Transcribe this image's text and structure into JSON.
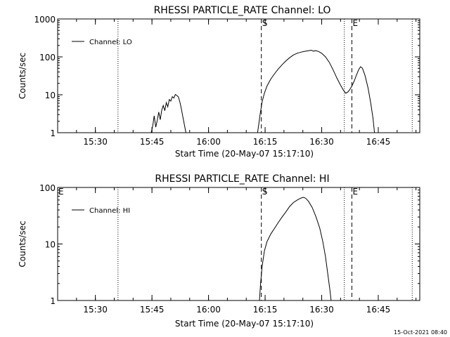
{
  "timestamp": "15-Oct-2021 08:40",
  "chart_data": [
    {
      "type": "line",
      "title": "RHESSI PARTICLE_RATE Channel: LO",
      "xlabel": "Start Time (20-May-07 15:17:10)",
      "ylabel": "Counts/sec",
      "yscale": "log",
      "ylim": [
        1,
        1000
      ],
      "yticks": [
        {
          "v": 1,
          "label": "1"
        },
        {
          "v": 10,
          "label": "10"
        },
        {
          "v": 100,
          "label": "100"
        },
        {
          "v": 1000,
          "label": "1000"
        }
      ],
      "xlim": [
        "15:20",
        "16:56"
      ],
      "xticks": [
        "15:30",
        "15:45",
        "16:00",
        "16:15",
        "16:30",
        "16:45"
      ],
      "legend": {
        "label": "Channel: LO",
        "placement": "top-left"
      },
      "markers": [
        {
          "label": "",
          "time": "15:36",
          "style": "dotted"
        },
        {
          "label": "S",
          "time": "16:14",
          "style": "dashed"
        },
        {
          "label": "",
          "time": "16:36",
          "style": "dotted"
        },
        {
          "label": "E",
          "time": "16:38",
          "style": "dashed"
        },
        {
          "label": "",
          "time": "16:54",
          "style": "dotted"
        }
      ],
      "series": [
        {
          "segments": [
            [
              [
                "15:44.8",
                1
              ],
              [
                "15:45.2",
                1.5
              ],
              [
                "15:45.6",
                2.8
              ],
              [
                "15:46.0",
                1.4
              ],
              [
                "15:46.4",
                2.1
              ],
              [
                "15:46.8",
                3.5
              ],
              [
                "15:47.2",
                2.2
              ],
              [
                "15:47.6",
                4.0
              ],
              [
                "15:48.0",
                5.2
              ],
              [
                "15:48.4",
                3.8
              ],
              [
                "15:48.8",
                6.2
              ],
              [
                "15:49.2",
                4.8
              ],
              [
                "15:49.6",
                7.5
              ],
              [
                "15:50.0",
                6.8
              ],
              [
                "15:50.4",
                8.9
              ],
              [
                "15:50.8",
                8.2
              ],
              [
                "15:51.2",
                10.2
              ],
              [
                "15:51.6",
                9.6
              ],
              [
                "15:52.0",
                8.8
              ],
              [
                "15:52.4",
                6.5
              ],
              [
                "15:52.8",
                4.2
              ],
              [
                "15:53.2",
                2.6
              ],
              [
                "15:53.6",
                1.6
              ],
              [
                "15:54.0",
                1
              ]
            ],
            [
              [
                "16:13.0",
                1
              ],
              [
                "16:13.3",
                1.6
              ],
              [
                "16:13.7",
                3.2
              ],
              [
                "16:14.2",
                6.5
              ],
              [
                "16:14.8",
                11
              ],
              [
                "16:15.5",
                17
              ],
              [
                "16:16.5",
                26
              ],
              [
                "16:17.5",
                36
              ],
              [
                "16:18.5",
                48
              ],
              [
                "16:19.5",
                62
              ],
              [
                "16:20.5",
                78
              ],
              [
                "16:21.5",
                95
              ],
              [
                "16:22.5",
                112
              ],
              [
                "16:23.5",
                125
              ],
              [
                "16:24.5",
                133
              ],
              [
                "16:25.5",
                140
              ],
              [
                "16:26.5",
                145
              ],
              [
                "16:27.2",
                150
              ],
              [
                "16:27.8",
                142
              ],
              [
                "16:28.5",
                146
              ],
              [
                "16:29.2",
                138
              ],
              [
                "16:30.0",
                125
              ],
              [
                "16:31.0",
                100
              ],
              [
                "16:32.0",
                72
              ],
              [
                "16:33.0",
                46
              ],
              [
                "16:34.0",
                28
              ],
              [
                "16:35.0",
                18
              ],
              [
                "16:35.8",
                13
              ],
              [
                "16:36.4",
                11
              ],
              [
                "16:37.0",
                12
              ],
              [
                "16:37.5",
                14
              ],
              [
                "16:38.0",
                17
              ],
              [
                "16:38.6",
                23
              ],
              [
                "16:39.2",
                33
              ],
              [
                "16:39.8",
                46
              ],
              [
                "16:40.3",
                55
              ],
              [
                "16:40.8",
                50
              ],
              [
                "16:41.5",
                32
              ],
              [
                "16:42.3",
                15
              ],
              [
                "16:43.0",
                6
              ],
              [
                "16:43.6",
                2.4
              ],
              [
                "16:44.0",
                1
              ]
            ]
          ]
        }
      ]
    },
    {
      "type": "line",
      "title": "RHESSI PARTICLE_RATE Channel: HI",
      "xlabel": "Start Time (20-May-07 15:17:10)",
      "ylabel": "Counts/sec",
      "yscale": "log",
      "ylim": [
        1,
        100
      ],
      "yticks": [
        {
          "v": 1,
          "label": "1"
        },
        {
          "v": 10,
          "label": "10"
        },
        {
          "v": 100,
          "label": "100"
        }
      ],
      "xlim": [
        "15:20",
        "16:56"
      ],
      "xticks": [
        "15:30",
        "15:45",
        "16:00",
        "16:15",
        "16:30",
        "16:45"
      ],
      "legend": {
        "label": "Channel: HI",
        "placement": "top-left"
      },
      "markers": [
        {
          "label": "E",
          "time": "15:20",
          "style": "none"
        },
        {
          "label": "",
          "time": "15:36",
          "style": "dotted"
        },
        {
          "label": "S",
          "time": "16:14",
          "style": "dashed"
        },
        {
          "label": "",
          "time": "16:36",
          "style": "dotted"
        },
        {
          "label": "E",
          "time": "16:38",
          "style": "dashed"
        },
        {
          "label": "",
          "time": "16:54",
          "style": "dotted"
        }
      ],
      "series": [
        {
          "segments": [
            [
              [
                "16:13.5",
                1
              ],
              [
                "16:13.8",
                2
              ],
              [
                "16:14.2",
                4
              ],
              [
                "16:14.8",
                7.5
              ],
              [
                "16:15.5",
                11
              ],
              [
                "16:16.5",
                15
              ],
              [
                "16:17.5",
                19
              ],
              [
                "16:18.5",
                24
              ],
              [
                "16:19.5",
                30
              ],
              [
                "16:20.5",
                37
              ],
              [
                "16:21.5",
                46
              ],
              [
                "16:22.5",
                54
              ],
              [
                "16:23.5",
                60
              ],
              [
                "16:24.5",
                65
              ],
              [
                "16:25.2",
                67
              ],
              [
                "16:25.8",
                64
              ],
              [
                "16:26.5",
                57
              ],
              [
                "16:27.5",
                44
              ],
              [
                "16:28.5",
                30
              ],
              [
                "16:29.5",
                19
              ],
              [
                "16:30.3",
                11
              ],
              [
                "16:31.0",
                6
              ],
              [
                "16:31.6",
                3
              ],
              [
                "16:32.2",
                1.5
              ],
              [
                "16:32.5",
                1
              ]
            ]
          ]
        }
      ]
    }
  ]
}
